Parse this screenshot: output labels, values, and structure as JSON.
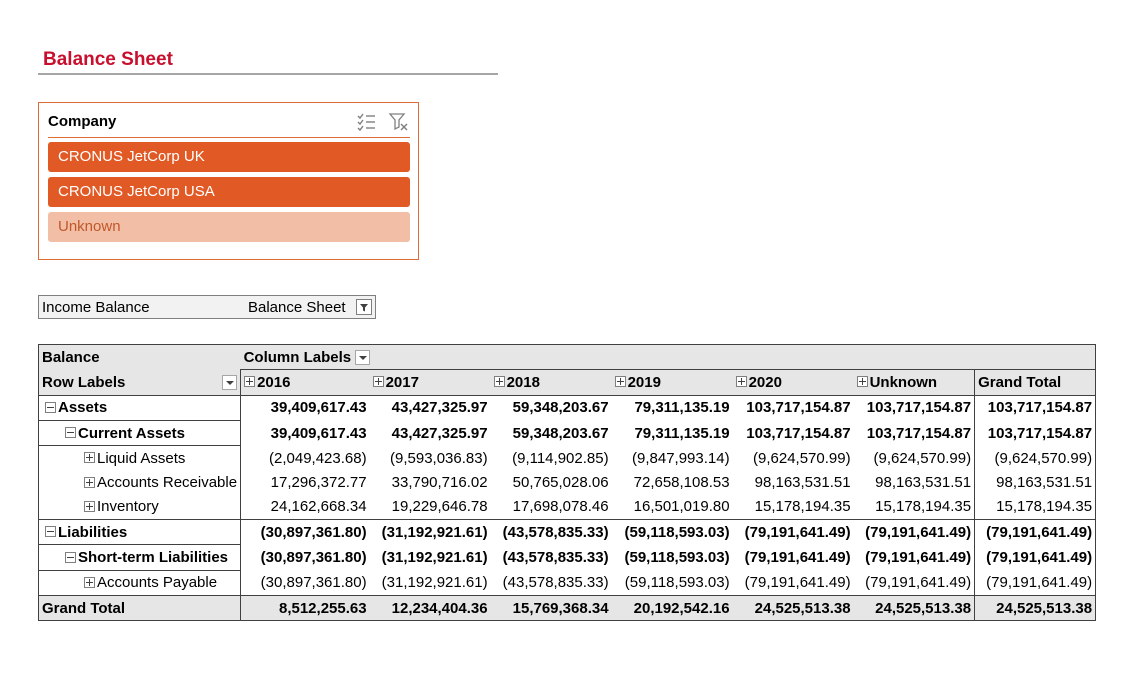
{
  "title": "Balance Sheet",
  "slicer": {
    "title": "Company",
    "multiselect_icon": "multi-select-icon",
    "clear_filter_icon": "clear-filter-icon",
    "items": [
      {
        "label": "CRONUS JetCorp UK",
        "selected": true
      },
      {
        "label": "CRONUS JetCorp USA",
        "selected": true
      },
      {
        "label": "Unknown",
        "selected": false
      }
    ],
    "colors": {
      "border": "#e06c35",
      "selected": "#e15a25",
      "unselected": "#f2bfa6"
    }
  },
  "filter": {
    "label": "Income Balance",
    "value": "Balance Sheet",
    "button_icon": "filter-icon"
  },
  "pivot": {
    "values_label": "Balance",
    "column_labels": "Column Labels",
    "row_labels": "Row Labels",
    "columns": [
      "2016",
      "2017",
      "2018",
      "2019",
      "2020",
      "Unknown"
    ],
    "grand_total_col": "Grand Total",
    "rows": [
      {
        "label": "Assets",
        "level": 1,
        "bold": true,
        "values": [
          "39,409,617.43",
          "43,427,325.97",
          "59,348,203.67",
          "79,311,135.19",
          "103,717,154.87",
          "103,717,154.87",
          "103,717,154.87"
        ]
      },
      {
        "label": "Current Assets",
        "level": 2,
        "bold": true,
        "values": [
          "39,409,617.43",
          "43,427,325.97",
          "59,348,203.67",
          "79,311,135.19",
          "103,717,154.87",
          "103,717,154.87",
          "103,717,154.87"
        ]
      },
      {
        "label": "Liquid Assets",
        "level": 3,
        "bold": false,
        "values": [
          "(2,049,423.68)",
          "(9,593,036.83)",
          "(9,114,902.85)",
          "(9,847,993.14)",
          "(9,624,570.99)",
          "(9,624,570.99)",
          "(9,624,570.99)"
        ]
      },
      {
        "label": "Accounts Receivable",
        "level": 3,
        "bold": false,
        "values": [
          "17,296,372.77",
          "33,790,716.02",
          "50,765,028.06",
          "72,658,108.53",
          "98,163,531.51",
          "98,163,531.51",
          "98,163,531.51"
        ]
      },
      {
        "label": "Inventory",
        "level": 3,
        "bold": false,
        "values": [
          "24,162,668.34",
          "19,229,646.78",
          "17,698,078.46",
          "16,501,019.80",
          "15,178,194.35",
          "15,178,194.35",
          "15,178,194.35"
        ]
      },
      {
        "label": "Liabilities",
        "level": 1,
        "bold": true,
        "values": [
          "(30,897,361.80)",
          "(31,192,921.61)",
          "(43,578,835.33)",
          "(59,118,593.03)",
          "(79,191,641.49)",
          "(79,191,641.49)",
          "(79,191,641.49)"
        ]
      },
      {
        "label": "Short-term Liabilities",
        "level": 2,
        "bold": true,
        "values": [
          "(30,897,361.80)",
          "(31,192,921.61)",
          "(43,578,835.33)",
          "(59,118,593.03)",
          "(79,191,641.49)",
          "(79,191,641.49)",
          "(79,191,641.49)"
        ]
      },
      {
        "label": "Accounts Payable",
        "level": 3,
        "bold": false,
        "values": [
          "(30,897,361.80)",
          "(31,192,921.61)",
          "(43,578,835.33)",
          "(59,118,593.03)",
          "(79,191,641.49)",
          "(79,191,641.49)",
          "(79,191,641.49)"
        ]
      }
    ],
    "grand_total": {
      "label": "Grand Total",
      "values": [
        "8,512,255.63",
        "12,234,404.36",
        "15,769,368.34",
        "20,192,542.16",
        "24,525,513.38",
        "24,525,513.38",
        "24,525,513.38"
      ]
    }
  }
}
